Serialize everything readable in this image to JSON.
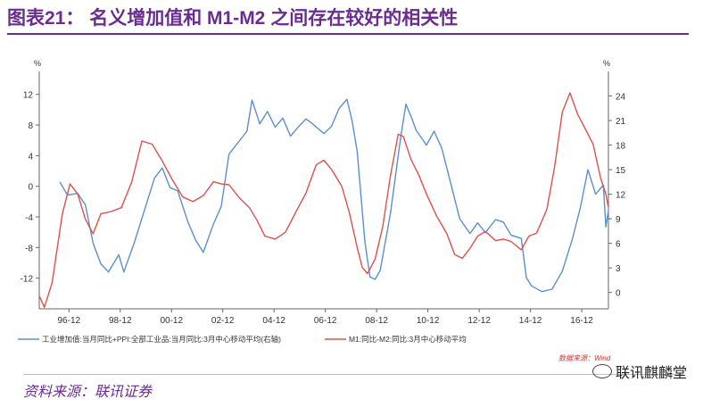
{
  "title": "图表21： 名义增加值和 M1-M2 之间存在较好的相关性",
  "source": "资料来源：联讯证券",
  "watermark": "联讯麒麟堂",
  "wind_credit": "数据来源：Wind",
  "colors": {
    "title": "#6b2c91",
    "industrial": "#5b8fd0",
    "m1m2": "#e0504a",
    "axis": "#666666"
  },
  "chart_data": {
    "type": "line",
    "left_axis": {
      "unit": "%",
      "ticks": [
        12,
        8,
        4,
        0,
        -4,
        -8,
        -12
      ],
      "range": [
        -16,
        15
      ]
    },
    "right_axis": {
      "unit": "%",
      "ticks": [
        24,
        21,
        18,
        15,
        12,
        9,
        6,
        3,
        0
      ],
      "range": [
        -2,
        27
      ]
    },
    "x_range": [
      1995.8,
      2018.0
    ],
    "x_ticks": [
      "96-12",
      "98-12",
      "00-12",
      "02-12",
      "04-12",
      "06-12",
      "08-12",
      "10-12",
      "12-12",
      "14-12",
      "16-12"
    ],
    "grid": false,
    "legend_position": "bottom",
    "series": [
      {
        "name": "工业增加值:当月同比+PPI:全部工业品:当月同比:3月中心移动平均(右轴)",
        "axis": "right",
        "color": "#5b8fd0",
        "points": [
          [
            1996.6,
            13.5
          ],
          [
            1996.9,
            11.9
          ],
          [
            1997.3,
            12.1
          ],
          [
            1997.6,
            10.7
          ],
          [
            1997.9,
            6.0
          ],
          [
            1998.2,
            3.5
          ],
          [
            1998.5,
            2.5
          ],
          [
            1998.9,
            4.6
          ],
          [
            1999.1,
            2.5
          ],
          [
            1999.5,
            6.0
          ],
          [
            1999.9,
            10.0
          ],
          [
            2000.3,
            14.0
          ],
          [
            2000.6,
            15.2
          ],
          [
            2000.9,
            12.8
          ],
          [
            2001.2,
            12.4
          ],
          [
            2001.6,
            8.6
          ],
          [
            2001.9,
            6.4
          ],
          [
            2002.2,
            4.9
          ],
          [
            2002.6,
            8.4
          ],
          [
            2002.9,
            10.5
          ],
          [
            2003.2,
            16.9
          ],
          [
            2003.6,
            18.5
          ],
          [
            2003.9,
            19.7
          ],
          [
            2004.1,
            23.5
          ],
          [
            2004.4,
            20.6
          ],
          [
            2004.7,
            22.1
          ],
          [
            2005.0,
            20.2
          ],
          [
            2005.3,
            21.3
          ],
          [
            2005.6,
            19.1
          ],
          [
            2005.9,
            20.2
          ],
          [
            2006.2,
            21.2
          ],
          [
            2006.5,
            20.5
          ],
          [
            2006.9,
            19.4
          ],
          [
            2007.2,
            20.3
          ],
          [
            2007.5,
            22.5
          ],
          [
            2007.8,
            23.6
          ],
          [
            2008.0,
            21.0
          ],
          [
            2008.2,
            17.2
          ],
          [
            2008.5,
            6.2
          ],
          [
            2008.7,
            1.9
          ],
          [
            2008.9,
            1.6
          ],
          [
            2009.1,
            2.7
          ],
          [
            2009.5,
            9.7
          ],
          [
            2009.9,
            19.0
          ],
          [
            2010.1,
            23.0
          ],
          [
            2010.3,
            21.5
          ],
          [
            2010.5,
            19.8
          ],
          [
            2010.9,
            18.0
          ],
          [
            2011.2,
            19.7
          ],
          [
            2011.5,
            17.6
          ],
          [
            2011.9,
            12.7
          ],
          [
            2012.2,
            9.0
          ],
          [
            2012.6,
            7.2
          ],
          [
            2012.9,
            8.5
          ],
          [
            2013.2,
            7.3
          ],
          [
            2013.6,
            8.9
          ],
          [
            2013.9,
            8.6
          ],
          [
            2014.2,
            7.0
          ],
          [
            2014.6,
            6.6
          ],
          [
            2014.8,
            1.8
          ],
          [
            2015.0,
            0.8
          ],
          [
            2015.4,
            0.1
          ],
          [
            2015.8,
            0.4
          ],
          [
            2016.2,
            2.6
          ],
          [
            2016.6,
            6.6
          ],
          [
            2016.9,
            10.3
          ],
          [
            2017.2,
            15.0
          ],
          [
            2017.5,
            12.0
          ],
          [
            2017.8,
            13.1
          ],
          [
            2017.9,
            8.0
          ],
          [
            2018.0,
            10.0
          ]
        ]
      },
      {
        "name": "M1:同比-M2:同比:3月中心移动平均",
        "axis": "left",
        "color": "#e0504a",
        "points": [
          [
            1995.8,
            -14.3
          ],
          [
            1996.0,
            -15.8
          ],
          [
            1996.3,
            -12.6
          ],
          [
            1996.7,
            -3.6
          ],
          [
            1997.0,
            0.3
          ],
          [
            1997.3,
            -1.0
          ],
          [
            1997.6,
            -4.3
          ],
          [
            1997.9,
            -6.2
          ],
          [
            1998.2,
            -3.6
          ],
          [
            1998.6,
            -3.3
          ],
          [
            1999.0,
            -2.8
          ],
          [
            1999.4,
            0.5
          ],
          [
            1999.8,
            5.9
          ],
          [
            2000.2,
            5.5
          ],
          [
            2000.6,
            3.3
          ],
          [
            2001.0,
            0.8
          ],
          [
            2001.4,
            -1.4
          ],
          [
            2001.8,
            -2.0
          ],
          [
            2002.2,
            -1.2
          ],
          [
            2002.6,
            0.6
          ],
          [
            2002.9,
            0.3
          ],
          [
            2003.2,
            0.2
          ],
          [
            2003.6,
            -1.5
          ],
          [
            2004.0,
            -2.8
          ],
          [
            2004.3,
            -4.5
          ],
          [
            2004.6,
            -6.5
          ],
          [
            2005.0,
            -6.9
          ],
          [
            2005.4,
            -6.0
          ],
          [
            2005.8,
            -3.4
          ],
          [
            2006.2,
            -0.9
          ],
          [
            2006.6,
            2.8
          ],
          [
            2006.9,
            3.4
          ],
          [
            2007.2,
            2.2
          ],
          [
            2007.6,
            0.0
          ],
          [
            2007.9,
            -3.5
          ],
          [
            2008.2,
            -8.0
          ],
          [
            2008.4,
            -10.6
          ],
          [
            2008.6,
            -11.4
          ],
          [
            2008.9,
            -9.5
          ],
          [
            2009.2,
            -5.2
          ],
          [
            2009.5,
            1.4
          ],
          [
            2009.8,
            6.8
          ],
          [
            2010.0,
            6.5
          ],
          [
            2010.3,
            3.5
          ],
          [
            2010.6,
            1.5
          ],
          [
            2010.9,
            -1.0
          ],
          [
            2011.3,
            -3.9
          ],
          [
            2011.7,
            -6.2
          ],
          [
            2012.0,
            -8.9
          ],
          [
            2012.3,
            -9.4
          ],
          [
            2012.6,
            -8.1
          ],
          [
            2012.9,
            -6.5
          ],
          [
            2013.2,
            -5.9
          ],
          [
            2013.6,
            -7.1
          ],
          [
            2013.9,
            -6.9
          ],
          [
            2014.2,
            -7.2
          ],
          [
            2014.6,
            -8.3
          ],
          [
            2014.9,
            -6.5
          ],
          [
            2015.2,
            -6.1
          ],
          [
            2015.6,
            -3.0
          ],
          [
            2015.9,
            2.5
          ],
          [
            2016.2,
            9.7
          ],
          [
            2016.5,
            12.2
          ],
          [
            2016.8,
            9.4
          ],
          [
            2017.1,
            7.5
          ],
          [
            2017.4,
            5.5
          ],
          [
            2017.7,
            1.0
          ],
          [
            2017.9,
            -1.0
          ],
          [
            2018.0,
            -2.8
          ]
        ]
      }
    ]
  }
}
